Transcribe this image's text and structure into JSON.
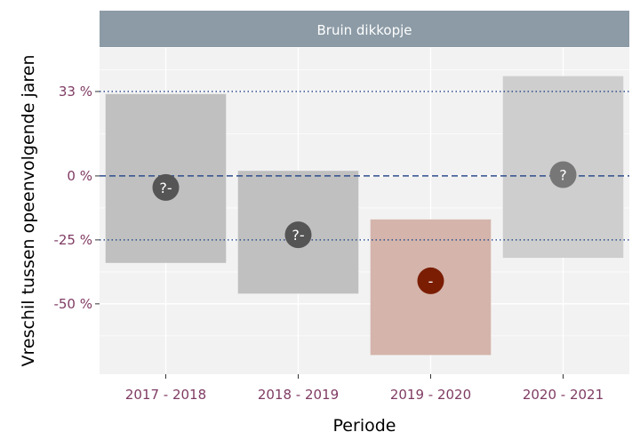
{
  "chart_data": {
    "type": "crossbar",
    "facet_title": "Bruin dikkopje",
    "xlabel": "Periode",
    "ylabel": "Vreschil tussen opeenvolgende jaren",
    "ylim": [
      -77.5,
      50
    ],
    "yticks": [
      {
        "value": 33,
        "label": "33 %"
      },
      {
        "value": 0,
        "label": "0 %"
      },
      {
        "value": -25,
        "label": "-25 %"
      },
      {
        "value": -50,
        "label": "-50 %"
      }
    ],
    "minor_grid": [
      41.5,
      16.5,
      -12.5,
      -37.5,
      -62.5
    ],
    "reference_lines": [
      {
        "value": 33,
        "style": "dotted"
      },
      {
        "value": 0,
        "style": "dashed"
      },
      {
        "value": -25,
        "style": "dotted"
      }
    ],
    "categories": [
      "2017 - 2018",
      "2018 - 2019",
      "2019 - 2020",
      "2020 - 2021"
    ],
    "points": [
      {
        "category": "2017 - 2018",
        "estimate": -4.5,
        "lower": -34,
        "upper": 32,
        "symbol": "?-",
        "color": "#555555",
        "band_color": "#c0c0c0"
      },
      {
        "category": "2018 - 2019",
        "estimate": -23,
        "lower": -46,
        "upper": 2,
        "symbol": "?-",
        "color": "#555555",
        "band_color": "#c0c0c0"
      },
      {
        "category": "2019 - 2020",
        "estimate": -41,
        "lower": -70,
        "upper": -17,
        "symbol": "-",
        "color": "#7a1d03",
        "band_color": "#d4b4ab"
      },
      {
        "category": "2020 - 2021",
        "estimate": 0.5,
        "lower": -32,
        "upper": 39,
        "symbol": "?",
        "color": "#777777",
        "band_color": "#cecece"
      }
    ],
    "colors": {
      "panel_bg": "#f2f2f2",
      "strip_bg": "#8c9ba6",
      "grid": "#ffffff",
      "reference_line": "#2e4d8c",
      "tick_label": "#7f3b63"
    }
  }
}
